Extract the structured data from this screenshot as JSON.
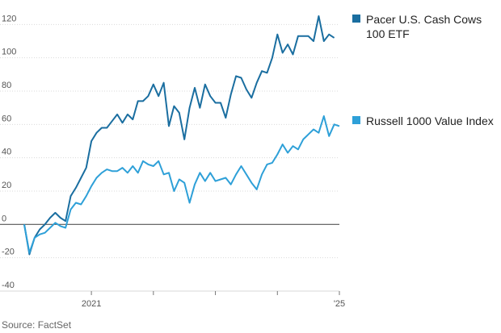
{
  "chart_data": {
    "type": "line",
    "title": "",
    "xlabel": "",
    "ylabel": "",
    "ylim": [
      -40,
      125
    ],
    "xlim": [
      "2019-12",
      "2025-01"
    ],
    "y_ticks": [
      120,
      100,
      80,
      60,
      40,
      20,
      0,
      -20,
      -40
    ],
    "x_tick_labels": [
      {
        "x": "2021-01",
        "label": "2021"
      },
      {
        "x": "2022-01",
        "label": ""
      },
      {
        "x": "2023-01",
        "label": ""
      },
      {
        "x": "2024-01",
        "label": ""
      },
      {
        "x": "2025-01",
        "label": "'25"
      }
    ],
    "grid": "horizontal",
    "zero_line": true,
    "legend_placement": "right",
    "series": [
      {
        "name": "Pacer U.S. Cash Cows 100 ETF",
        "color": "#1a6ea0",
        "points": [
          [
            "2019-12",
            0
          ],
          [
            "2020-01",
            -18
          ],
          [
            "2020-02",
            -8
          ],
          [
            "2020-03",
            -3
          ],
          [
            "2020-04",
            0
          ],
          [
            "2020-05",
            4
          ],
          [
            "2020-06",
            7
          ],
          [
            "2020-07",
            4
          ],
          [
            "2020-08",
            2
          ],
          [
            "2020-09",
            17
          ],
          [
            "2020-10",
            22
          ],
          [
            "2020-11",
            28
          ],
          [
            "2020-12",
            34
          ],
          [
            "2021-01",
            50
          ],
          [
            "2021-02",
            55
          ],
          [
            "2021-03",
            58
          ],
          [
            "2021-04",
            58
          ],
          [
            "2021-05",
            62
          ],
          [
            "2021-06",
            66
          ],
          [
            "2021-07",
            61
          ],
          [
            "2021-08",
            66
          ],
          [
            "2021-09",
            63
          ],
          [
            "2021-10",
            74
          ],
          [
            "2021-11",
            74
          ],
          [
            "2021-12",
            77
          ],
          [
            "2022-01",
            84
          ],
          [
            "2022-02",
            77
          ],
          [
            "2022-03",
            85
          ],
          [
            "2022-04",
            59
          ],
          [
            "2022-05",
            71
          ],
          [
            "2022-06",
            67
          ],
          [
            "2022-07",
            51
          ],
          [
            "2022-08",
            70
          ],
          [
            "2022-09",
            82
          ],
          [
            "2022-10",
            70
          ],
          [
            "2022-11",
            84
          ],
          [
            "2022-12",
            77
          ],
          [
            "2023-01",
            73
          ],
          [
            "2023-02",
            73
          ],
          [
            "2023-03",
            64
          ],
          [
            "2023-04",
            78
          ],
          [
            "2023-05",
            89
          ],
          [
            "2023-06",
            88
          ],
          [
            "2023-07",
            81
          ],
          [
            "2023-08",
            76
          ],
          [
            "2023-09",
            85
          ],
          [
            "2023-10",
            92
          ],
          [
            "2023-11",
            91
          ],
          [
            "2023-12",
            100
          ],
          [
            "2024-01",
            114
          ],
          [
            "2024-02",
            103
          ],
          [
            "2024-03",
            108
          ],
          [
            "2024-04",
            102
          ],
          [
            "2024-05",
            113
          ],
          [
            "2024-06",
            113
          ],
          [
            "2024-07",
            113
          ],
          [
            "2024-08",
            110
          ],
          [
            "2024-09",
            125
          ],
          [
            "2024-10",
            110
          ],
          [
            "2024-11",
            114
          ],
          [
            "2024-12",
            112
          ]
        ]
      },
      {
        "name": "Russell 1000 Value Index",
        "color": "#2ea0d8",
        "points": [
          [
            "2019-12",
            0
          ],
          [
            "2020-01",
            -17
          ],
          [
            "2020-02",
            -8
          ],
          [
            "2020-03",
            -6
          ],
          [
            "2020-04",
            -5
          ],
          [
            "2020-05",
            -2
          ],
          [
            "2020-06",
            1
          ],
          [
            "2020-07",
            -1
          ],
          [
            "2020-08",
            -2
          ],
          [
            "2020-09",
            9
          ],
          [
            "2020-10",
            13
          ],
          [
            "2020-11",
            12
          ],
          [
            "2020-12",
            17
          ],
          [
            "2021-01",
            23
          ],
          [
            "2021-02",
            28
          ],
          [
            "2021-03",
            31
          ],
          [
            "2021-04",
            33
          ],
          [
            "2021-05",
            32
          ],
          [
            "2021-06",
            32
          ],
          [
            "2021-07",
            34
          ],
          [
            "2021-08",
            31
          ],
          [
            "2021-09",
            35
          ],
          [
            "2021-10",
            31
          ],
          [
            "2021-11",
            38
          ],
          [
            "2021-12",
            36
          ],
          [
            "2022-01",
            35
          ],
          [
            "2022-02",
            38
          ],
          [
            "2022-03",
            30
          ],
          [
            "2022-04",
            31
          ],
          [
            "2022-05",
            20
          ],
          [
            "2022-06",
            27
          ],
          [
            "2022-07",
            25
          ],
          [
            "2022-08",
            13
          ],
          [
            "2022-09",
            24
          ],
          [
            "2022-10",
            31
          ],
          [
            "2022-11",
            26
          ],
          [
            "2022-12",
            31
          ],
          [
            "2023-01",
            26
          ],
          [
            "2023-02",
            27
          ],
          [
            "2023-03",
            28
          ],
          [
            "2023-04",
            24
          ],
          [
            "2023-05",
            30
          ],
          [
            "2023-06",
            35
          ],
          [
            "2023-07",
            30
          ],
          [
            "2023-08",
            25
          ],
          [
            "2023-09",
            21
          ],
          [
            "2023-10",
            30
          ],
          [
            "2023-11",
            36
          ],
          [
            "2023-12",
            37
          ],
          [
            "2024-01",
            42
          ],
          [
            "2024-02",
            48
          ],
          [
            "2024-03",
            43
          ],
          [
            "2024-04",
            47
          ],
          [
            "2024-05",
            45
          ],
          [
            "2024-06",
            51
          ],
          [
            "2024-07",
            54
          ],
          [
            "2024-08",
            57
          ],
          [
            "2024-09",
            55
          ],
          [
            "2024-10",
            65
          ],
          [
            "2024-11",
            53
          ],
          [
            "2024-12",
            60
          ],
          [
            "2025-01",
            59
          ]
        ]
      }
    ]
  },
  "legend": {
    "items": [
      {
        "label": "Pacer U.S. Cash Cows 100 ETF",
        "color": "#1a6ea0"
      },
      {
        "label": "Russell 1000 Value Index",
        "color": "#2ea0d8"
      }
    ]
  },
  "source_text": "Source: FactSet"
}
